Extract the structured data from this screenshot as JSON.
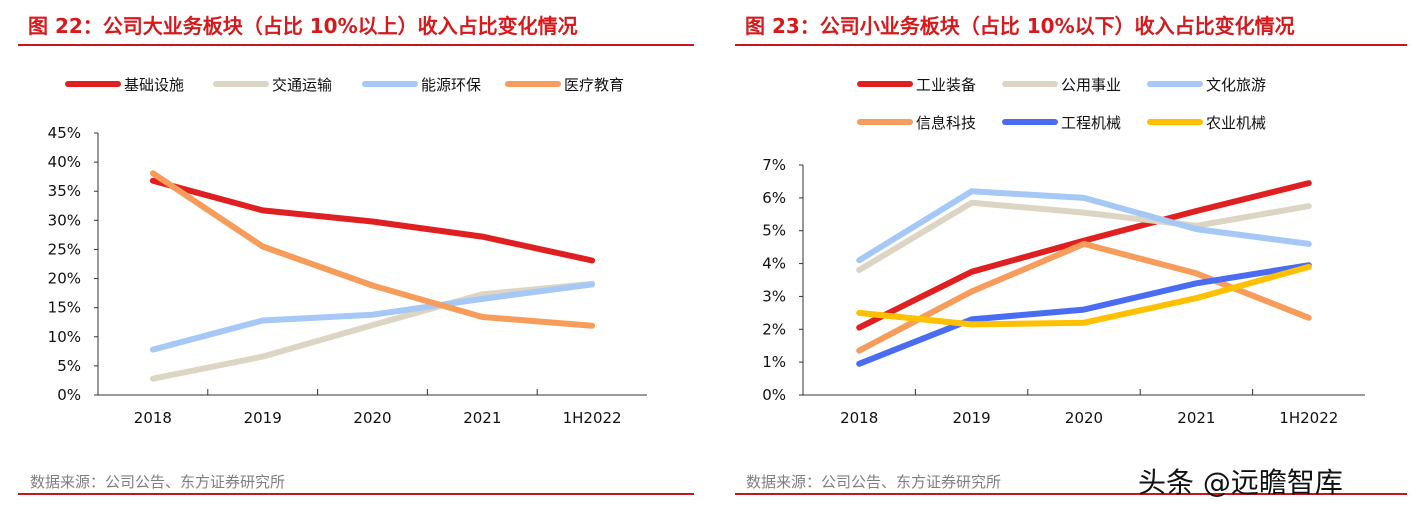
{
  "left": {
    "title": "图 22：公司大业务板块（占比 10%以上）收入占比变化情况",
    "source": "数据来源：公司公告、东方证券研究所"
  },
  "right": {
    "title": "图 23：公司小业务板块（占比 10%以下）收入占比变化情况",
    "source": "数据来源：公司公告、东方证券研究所"
  },
  "watermark": "头条 @远瞻智库",
  "chart_data": [
    {
      "type": "line",
      "categories": [
        "2018",
        "2019",
        "2020",
        "2021",
        "1H2022"
      ],
      "ylim": [
        0,
        45
      ],
      "yticks": [
        "0%",
        "5%",
        "10%",
        "15%",
        "20%",
        "25%",
        "30%",
        "35%",
        "40%",
        "45%"
      ],
      "grid": false,
      "legend": "top",
      "series": [
        {
          "name": "基础设施",
          "color": "#e02020",
          "values": [
            36.8,
            31.7,
            29.8,
            27.2,
            23.1
          ]
        },
        {
          "name": "交通运输",
          "color": "#ddd5c3",
          "values": [
            2.8,
            6.6,
            12.0,
            17.3,
            19.1
          ]
        },
        {
          "name": "能源环保",
          "color": "#a5c8f7",
          "values": [
            7.8,
            12.8,
            13.8,
            16.5,
            19.0
          ]
        },
        {
          "name": "医疗教育",
          "color": "#f79c5a",
          "values": [
            38.1,
            25.5,
            18.8,
            13.4,
            11.9
          ]
        }
      ]
    },
    {
      "type": "line",
      "categories": [
        "2018",
        "2019",
        "2020",
        "2021",
        "1H2022"
      ],
      "ylim": [
        0,
        7
      ],
      "yticks": [
        "0%",
        "1%",
        "2%",
        "3%",
        "4%",
        "5%",
        "6%",
        "7%"
      ],
      "grid": false,
      "legend": "top",
      "series": [
        {
          "name": "工业装备",
          "color": "#e02020",
          "values": [
            2.05,
            3.75,
            4.7,
            5.6,
            6.45
          ]
        },
        {
          "name": "公用事业",
          "color": "#ddd5c3",
          "values": [
            3.8,
            5.85,
            5.55,
            5.15,
            5.75
          ]
        },
        {
          "name": "文化旅游",
          "color": "#a5c8f7",
          "values": [
            4.1,
            6.2,
            6.0,
            5.05,
            4.6
          ]
        },
        {
          "name": "信息科技",
          "color": "#f79c5a",
          "values": [
            1.35,
            3.15,
            4.6,
            3.7,
            2.35
          ]
        },
        {
          "name": "工程机械",
          "color": "#4a6cf2",
          "values": [
            0.95,
            2.3,
            2.6,
            3.4,
            3.95
          ]
        },
        {
          "name": "农业机械",
          "color": "#ffc000",
          "values": [
            2.5,
            2.15,
            2.2,
            2.95,
            3.9
          ]
        }
      ]
    }
  ]
}
